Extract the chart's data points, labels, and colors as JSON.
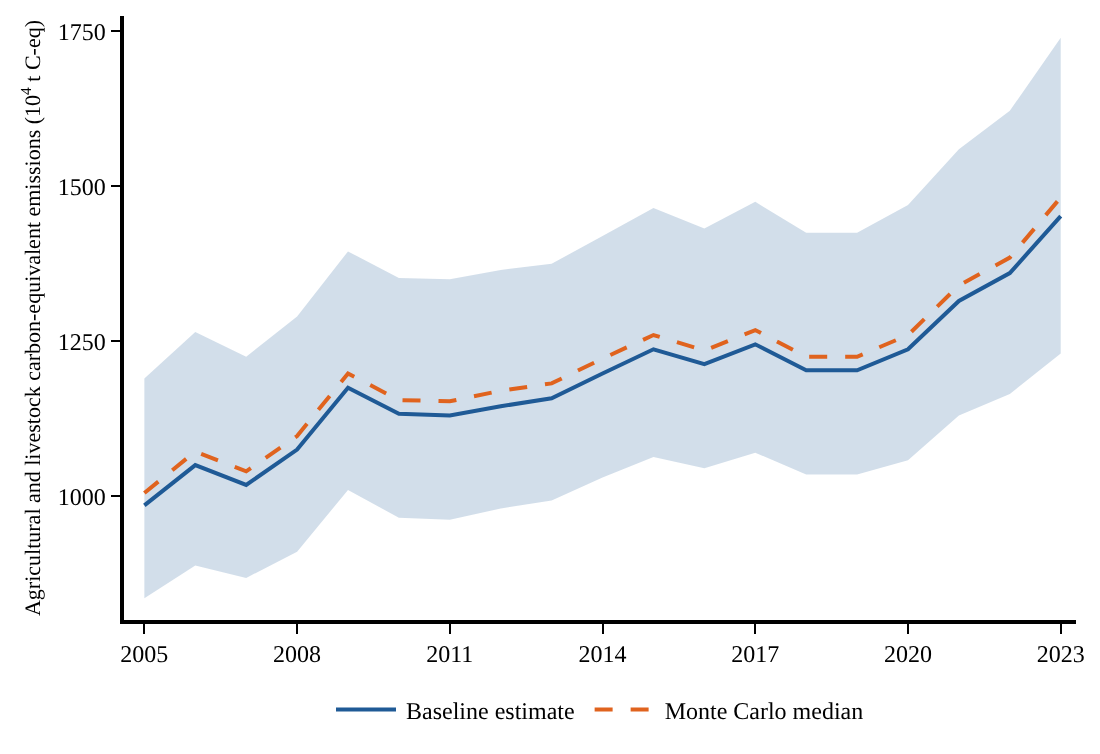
{
  "chart_data": {
    "type": "line",
    "ylabel": "Agricultural and livestock carbon-equivalent emissions (10$^{4}$ t C-eq)",
    "x": [
      2005,
      2006,
      2007,
      2008,
      2009,
      2010,
      2011,
      2012,
      2013,
      2014,
      2015,
      2016,
      2017,
      2018,
      2019,
      2020,
      2021,
      2022,
      2023
    ],
    "series": [
      {
        "name": "Baseline estimate",
        "color": "#1f5a96",
        "line_style": "solid",
        "values": [
          985,
          1050,
          1018,
          1075,
          1175,
          1133,
          1130,
          1145,
          1158,
          1198,
          1237,
          1213,
          1245,
          1203,
          1203,
          1237,
          1315,
          1360,
          1452
        ],
        "lower": [
          835,
          888,
          868,
          910,
          1010,
          965,
          962,
          980,
          993,
          1030,
          1063,
          1045,
          1070,
          1035,
          1035,
          1058,
          1130,
          1165,
          1230
        ],
        "upper": [
          1190,
          1265,
          1225,
          1290,
          1395,
          1352,
          1350,
          1365,
          1375,
          1420,
          1465,
          1432,
          1475,
          1425,
          1425,
          1470,
          1560,
          1622,
          1740
        ]
      },
      {
        "name": "Monte Carlo median",
        "color": "#e0631e",
        "line_style": "dashed",
        "values": [
          1005,
          1072,
          1040,
          1097,
          1198,
          1155,
          1153,
          1170,
          1182,
          1222,
          1260,
          1235,
          1268,
          1225,
          1225,
          1260,
          1340,
          1385,
          1482
        ]
      }
    ],
    "xlim": [
      2004.6,
      2023.3
    ],
    "xticks": [
      2005,
      2008,
      2011,
      2014,
      2017,
      2020,
      2023
    ],
    "ylim": [
      800,
      1775
    ],
    "yticks": [
      1000,
      1250,
      1500,
      1750
    ],
    "legend": "bottom",
    "marker": "none"
  }
}
